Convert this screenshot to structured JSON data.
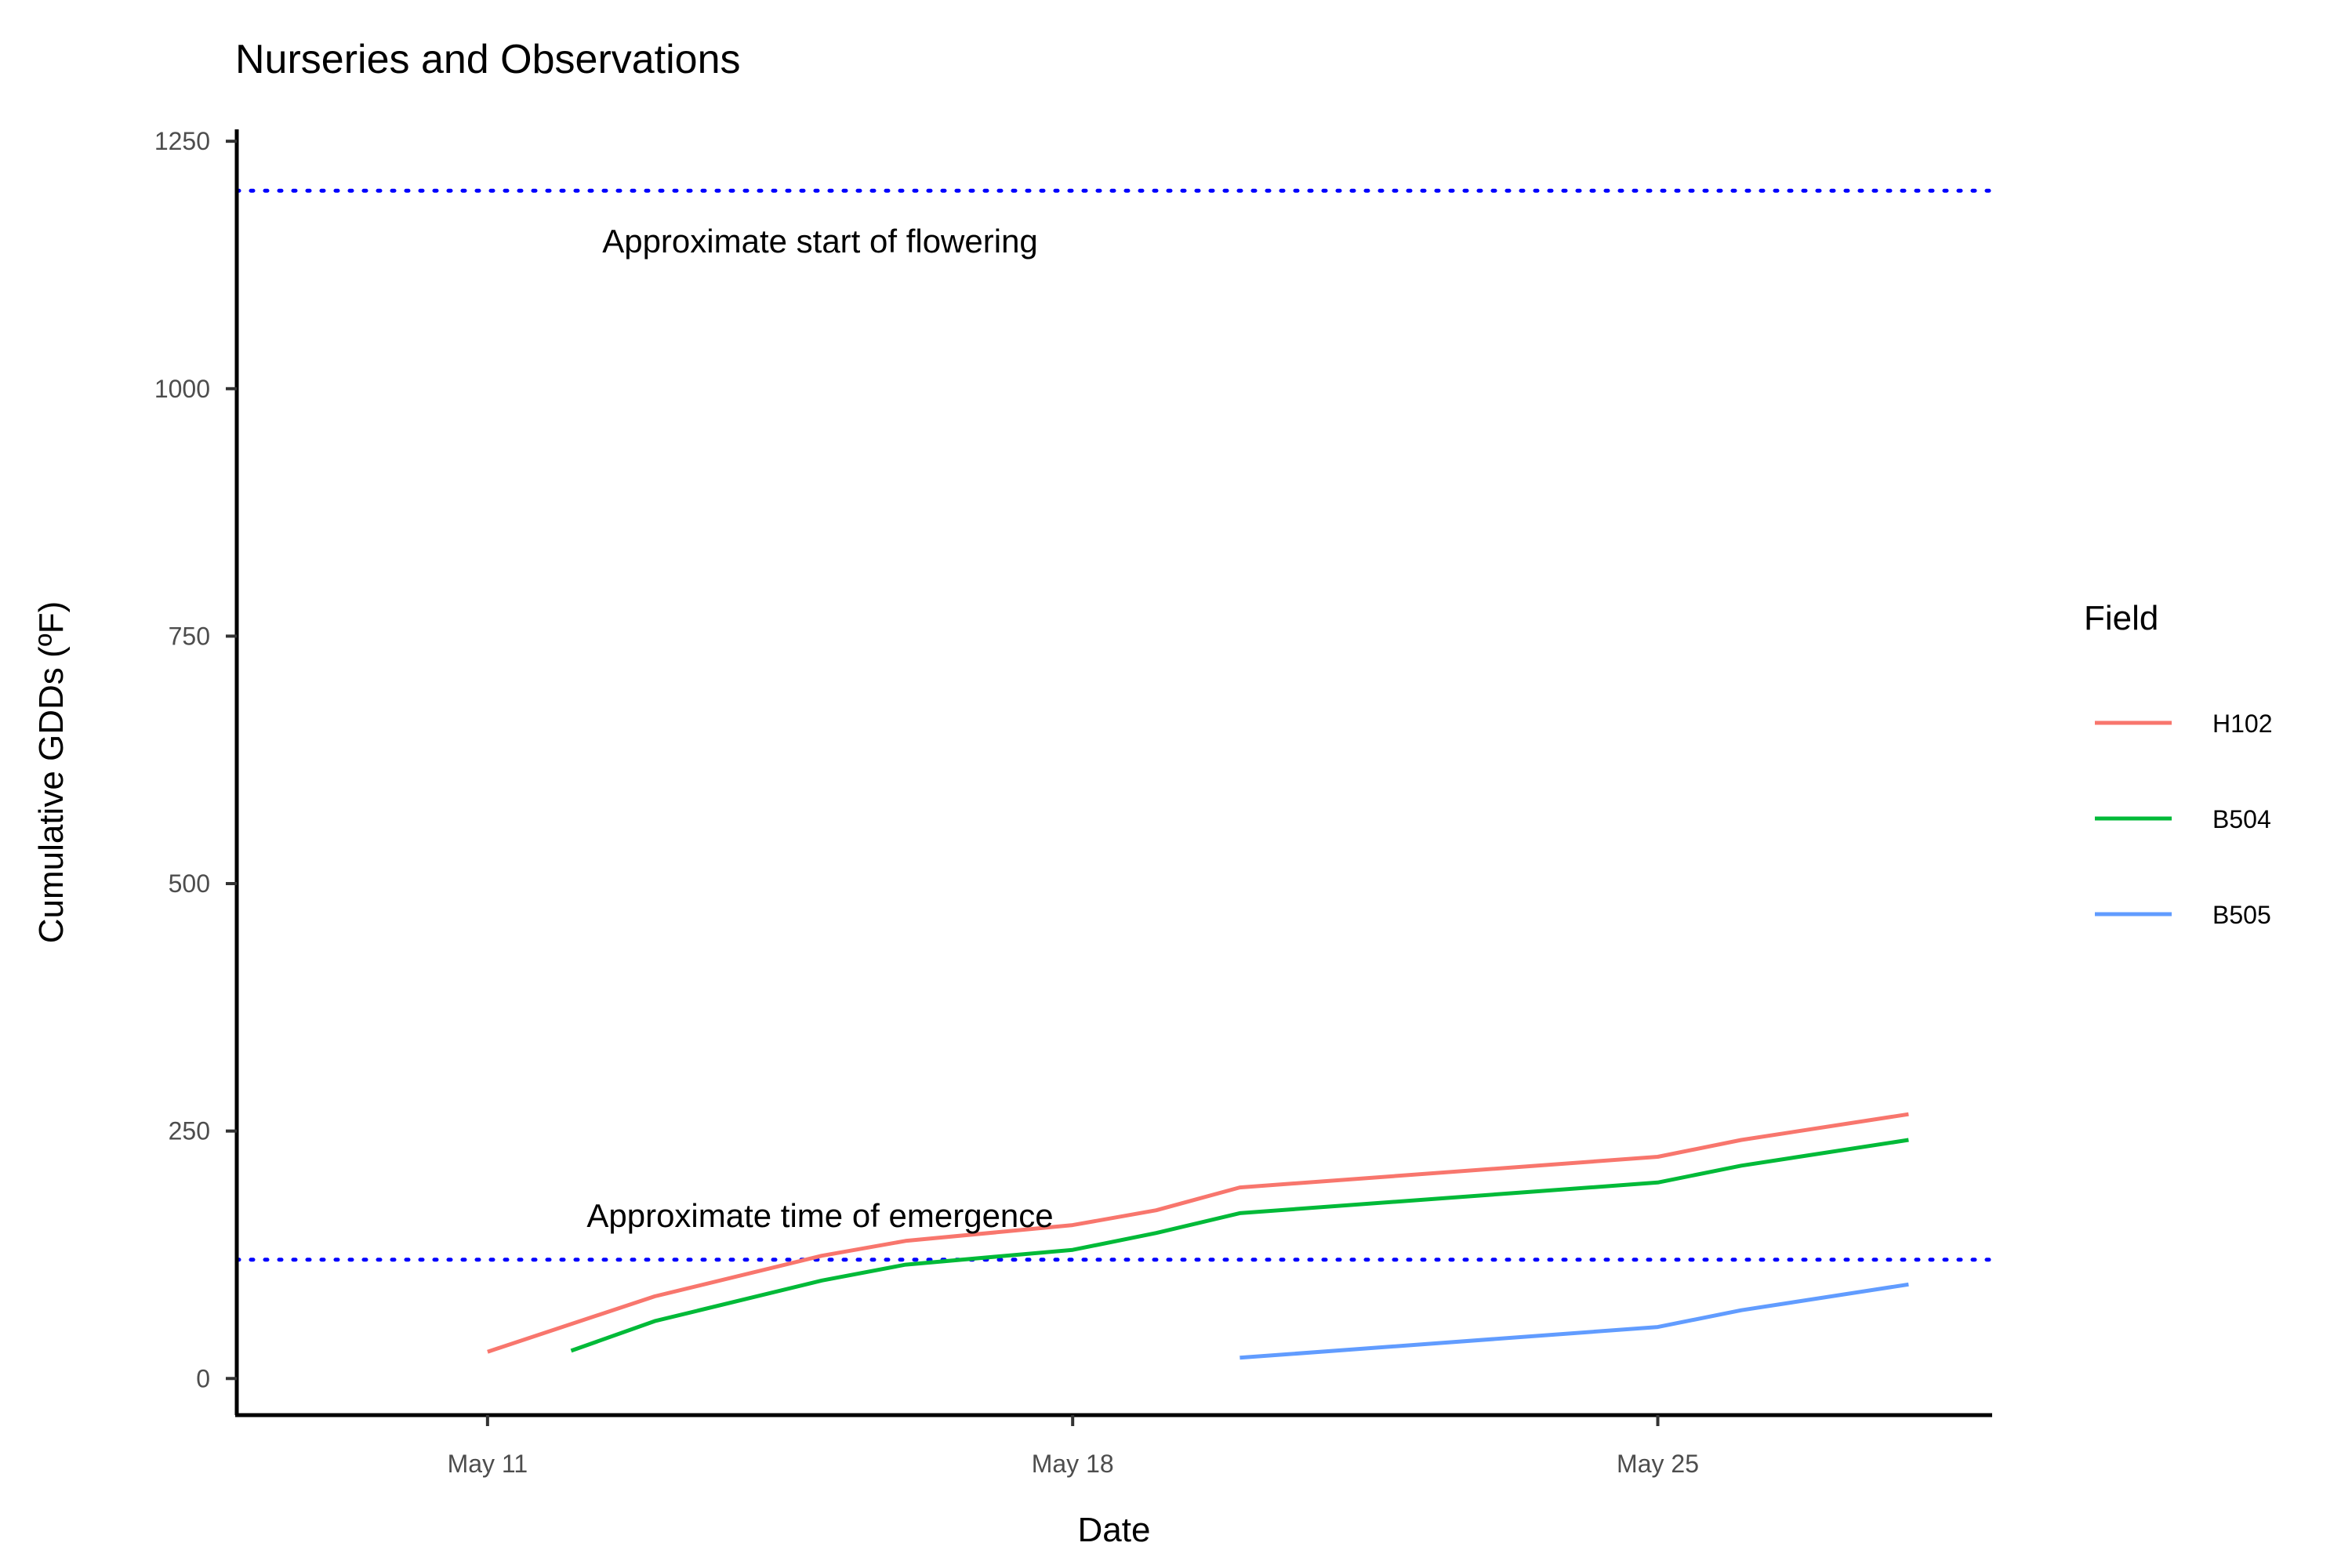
{
  "chart_data": {
    "type": "line",
    "title": "Nurseries and Observations",
    "xlabel": "Date",
    "ylabel": "Cumulative GDDs (ºF)",
    "x_ticks": [
      "May 11",
      "May 18",
      "May 25"
    ],
    "y_ticks": [
      "0",
      "250",
      "500",
      "750",
      "1000",
      "1250"
    ],
    "ylim": [
      -37,
      1262
    ],
    "xlim": [
      "May 8",
      "May 29"
    ],
    "legend_title": "Field",
    "legend_position": "right",
    "grid": false,
    "series": [
      {
        "name": "H102",
        "color": "#F8766D",
        "points": [
          {
            "x": "May 11",
            "y": 27
          },
          {
            "x": "May 13",
            "y": 83
          },
          {
            "x": "May 15",
            "y": 124
          },
          {
            "x": "May 16",
            "y": 139
          },
          {
            "x": "May 18",
            "y": 155
          },
          {
            "x": "May 19",
            "y": 170
          },
          {
            "x": "May 20",
            "y": 193
          },
          {
            "x": "May 25",
            "y": 224
          },
          {
            "x": "May 26",
            "y": 241
          },
          {
            "x": "May 28",
            "y": 267
          }
        ]
      },
      {
        "name": "B504",
        "color": "#00BA38",
        "points": [
          {
            "x": "May 12",
            "y": 28
          },
          {
            "x": "May 13",
            "y": 58
          },
          {
            "x": "May 15",
            "y": 99
          },
          {
            "x": "May 16",
            "y": 115
          },
          {
            "x": "May 18",
            "y": 130
          },
          {
            "x": "May 19",
            "y": 147
          },
          {
            "x": "May 20",
            "y": 167
          },
          {
            "x": "May 25",
            "y": 198
          },
          {
            "x": "May 26",
            "y": 215
          },
          {
            "x": "May 28",
            "y": 241
          }
        ]
      },
      {
        "name": "B505",
        "color": "#619CFF",
        "points": [
          {
            "x": "May 20",
            "y": 21
          },
          {
            "x": "May 25",
            "y": 52
          },
          {
            "x": "May 26",
            "y": 69
          },
          {
            "x": "May 28",
            "y": 95
          }
        ]
      }
    ],
    "reference_lines": [
      {
        "y": 1200,
        "label": "Approximate start of flowering",
        "color": "#0000FF",
        "style": "dotted"
      },
      {
        "y": 120,
        "label": "Approximate time of emergence",
        "color": "#0000FF",
        "style": "dotted"
      }
    ]
  }
}
